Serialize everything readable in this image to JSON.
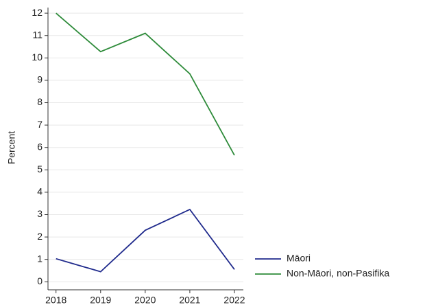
{
  "chart_data": {
    "type": "line",
    "y_label": "Percent",
    "x": [
      2018,
      2019,
      2020,
      2021,
      2022
    ],
    "series": [
      {
        "name": "Māori",
        "color": "#1f2a8c",
        "values": [
          1.03,
          0.45,
          2.3,
          3.23,
          0.55
        ]
      },
      {
        "name": "Non-Māori, non-Pasifika",
        "color": "#2e8b3a",
        "values": [
          12.0,
          10.28,
          11.1,
          9.29,
          5.65
        ]
      }
    ],
    "xlim": [
      2017.82,
      2022.2
    ],
    "xticks": [
      2018,
      2019,
      2020,
      2021,
      2022
    ],
    "ylim": [
      -0.36,
      12.25
    ],
    "yticks": [
      0,
      1,
      2,
      3,
      4,
      5,
      6,
      7,
      8,
      9,
      10,
      11,
      12
    ],
    "grid": true,
    "legend": "lower right"
  }
}
